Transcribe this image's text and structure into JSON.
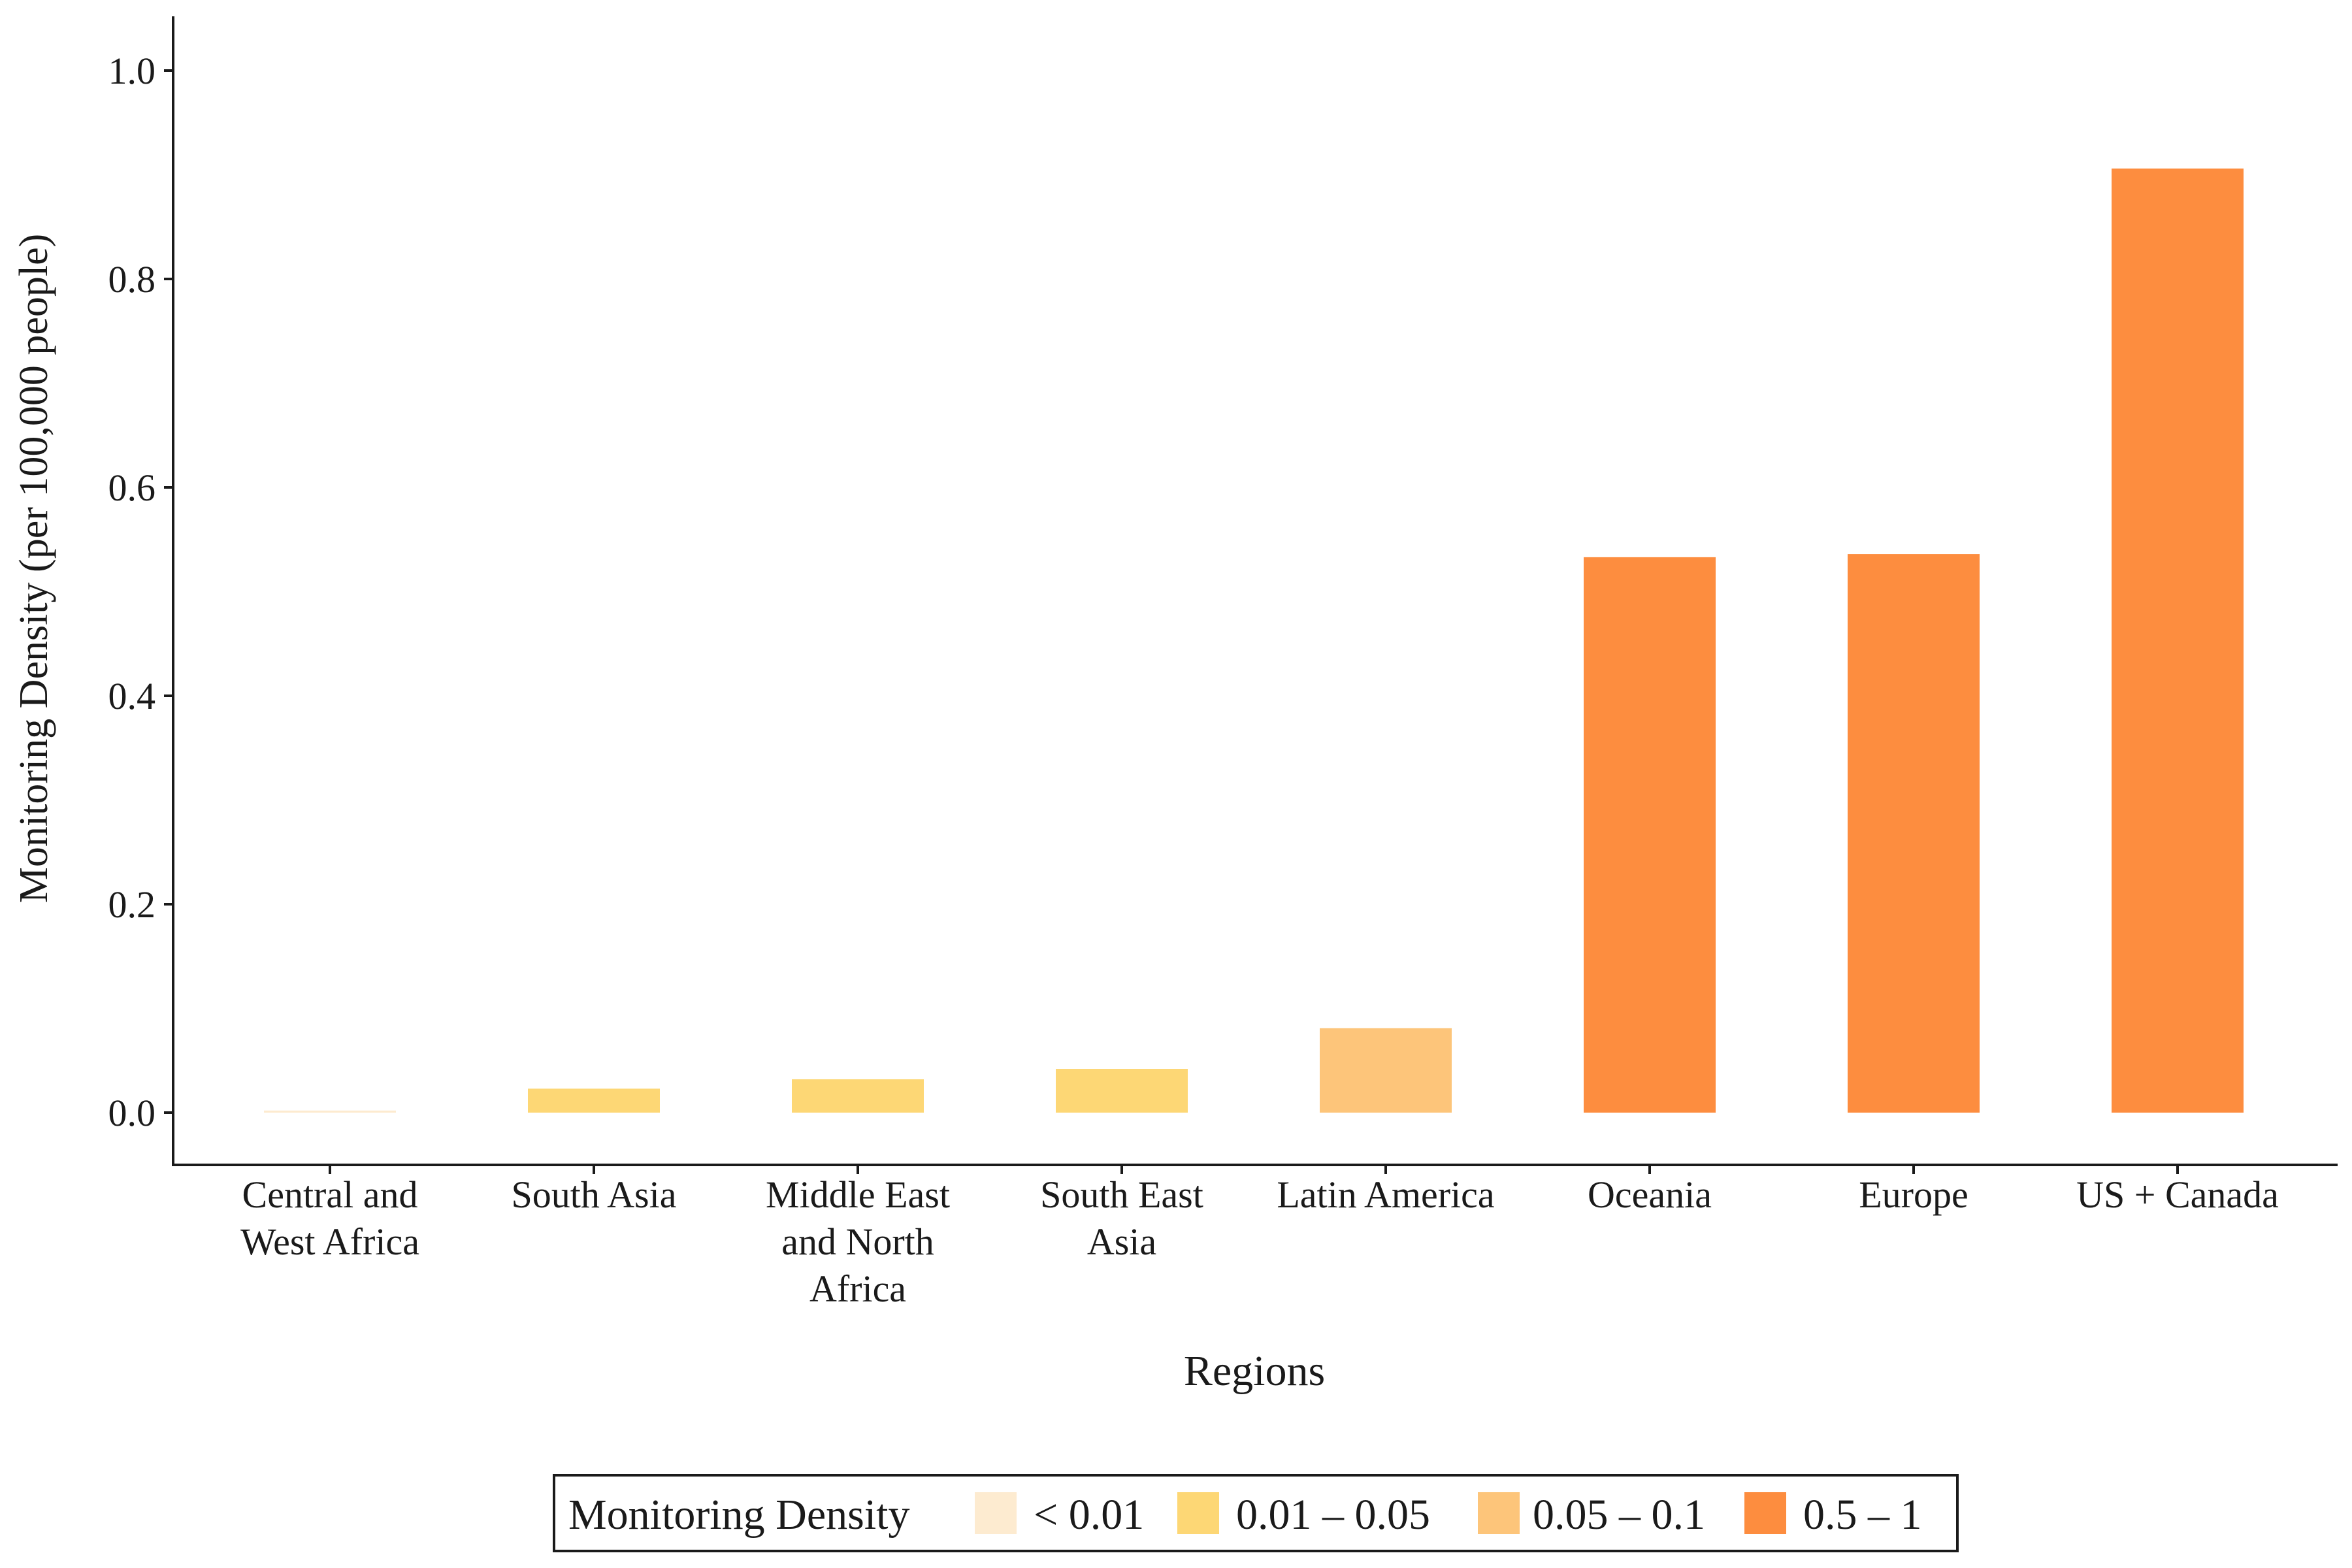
{
  "chart_data": {
    "type": "bar",
    "title": "",
    "xlabel": "Regions",
    "ylabel": "Monitoring Density (per 100,000 people)",
    "ylim": [
      0,
      1.05
    ],
    "yticks": [
      "0.0",
      "0.2",
      "0.4",
      "0.6",
      "0.8",
      "1.0"
    ],
    "grid": false,
    "legend_placement": "bottom",
    "categories": [
      {
        "lines": [
          "Central and",
          "West Africa"
        ],
        "value": 0.002,
        "class": "< 0.01"
      },
      {
        "lines": [
          "South Asia"
        ],
        "value": 0.023,
        "class": "0.01 – 0.05"
      },
      {
        "lines": [
          "Middle East",
          "and North",
          "Africa"
        ],
        "value": 0.032,
        "class": "0.01 – 0.05"
      },
      {
        "lines": [
          "South East",
          "Asia"
        ],
        "value": 0.042,
        "class": "0.01 – 0.05"
      },
      {
        "lines": [
          "Latin America"
        ],
        "value": 0.081,
        "class": "0.05 – 0.1"
      },
      {
        "lines": [
          "Oceania"
        ],
        "value": 0.533,
        "class": "0.5 – 1"
      },
      {
        "lines": [
          "Europe"
        ],
        "value": 0.536,
        "class": "0.5 – 1"
      },
      {
        "lines": [
          "US + Canada"
        ],
        "value": 0.906,
        "class": "0.5 – 1"
      }
    ],
    "legend": {
      "title": "Monitoring Density",
      "entries": [
        {
          "label": "< 0.01",
          "color": "#FDEBD0"
        },
        {
          "label": "0.01 – 0.05",
          "color": "#FDD775"
        },
        {
          "label": "0.05 – 0.1",
          "color": "#FDC57A"
        },
        {
          "label": "0.5 – 1",
          "color": "#FD8D3F"
        }
      ]
    }
  }
}
